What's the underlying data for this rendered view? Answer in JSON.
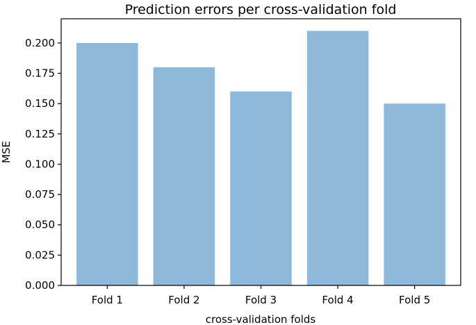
{
  "chart_data": {
    "type": "bar",
    "title": "Prediction errors per cross-validation fold",
    "xlabel": "cross-validation folds",
    "ylabel": "MSE",
    "categories": [
      "Fold 1",
      "Fold 2",
      "Fold 3",
      "Fold 4",
      "Fold 5"
    ],
    "values": [
      0.2,
      0.18,
      0.16,
      0.21,
      0.15
    ],
    "ylim": [
      0,
      0.22
    ],
    "yticks": [
      "0.000",
      "0.025",
      "0.050",
      "0.075",
      "0.100",
      "0.125",
      "0.150",
      "0.175",
      "0.200"
    ],
    "grid": false,
    "bar_color": "#8db8da",
    "axis_color": "#000000"
  }
}
